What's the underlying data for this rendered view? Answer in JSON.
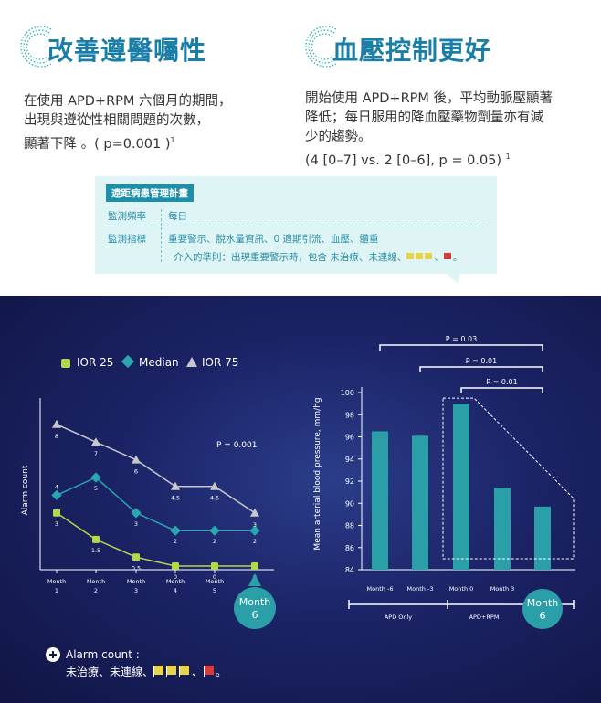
{
  "header": {
    "left_title": "改善遵醫囑性",
    "right_title": "血壓控制更好",
    "left_text": [
      "在使用 APD+RPM 六個月的期間，",
      "出現與遵從性相關問題的次數，",
      "顯著下降 。( p=0.001 )"
    ],
    "left_sup": "1",
    "right_text": [
      "開始使用 APD+RPM 後，平均動脈壓顯著",
      "降低；每日服用的降血壓藥物劑量亦有減",
      "少的趨勢。",
      "(4 [0–7] vs. 2 [0–6], p = 0.05)"
    ],
    "right_sup": "1"
  },
  "panel": {
    "tag": "遠距病患管理計畫",
    "freq_label": "監測頻率",
    "freq_value": "每日",
    "metric_label": "監測指標",
    "metric_value": "重要警示、脫水量資訊、0 適期引流、血壓、體重",
    "criteria": "介入的準則：出現重要警示時，包含 未治療、未連線、",
    "criteria_end": "、",
    "criteria_tail": "。"
  },
  "colors": {
    "teal": "#2a9fa8",
    "iqr25": "#b5d84a",
    "median": "#2aa6b0",
    "iqr75": "#c8c8cc",
    "yellow_flag": "#e8d44a",
    "red_flag": "#d83a3a"
  },
  "chart_data": [
    {
      "type": "line",
      "x": [
        "Month 1",
        "Month 2",
        "Month 3",
        "Month 4",
        "Month 5",
        "Month 6"
      ],
      "x_ticks": [
        [
          "Month",
          "1"
        ],
        [
          "Month",
          "2"
        ],
        [
          "Month",
          "3"
        ],
        [
          "Month",
          "4"
        ],
        [
          "Month",
          "5"
        ]
      ],
      "x_highlight": [
        "Month",
        "6"
      ],
      "ylabel": "Alarm count",
      "annotation": "P = 0.001",
      "ylim": [
        0,
        10
      ],
      "series": [
        {
          "name": "IQR 25",
          "values": [
            3,
            1.5,
            0.5,
            0,
            0,
            0
          ],
          "labels": [
            "3",
            "1.5",
            "0.5",
            "0",
            "0",
            "0"
          ]
        },
        {
          "name": "Median",
          "values": [
            4,
            5,
            3,
            2,
            2,
            2
          ],
          "labels": [
            "4",
            "5",
            "3",
            "2",
            "2",
            "2"
          ]
        },
        {
          "name": "IOR 75",
          "values": [
            8,
            7,
            6,
            4.5,
            4.5,
            3
          ],
          "labels": [
            "8",
            "7",
            "6",
            "4.5",
            "4.5",
            "3"
          ]
        }
      ],
      "legend": [
        "IOR 25",
        "Median",
        "IOR 75"
      ]
    },
    {
      "type": "bar",
      "categories": [
        "Month -6",
        "Month -3",
        "Month  0",
        "Month  3",
        "Month 6"
      ],
      "values": [
        96.5,
        96.1,
        99,
        91.4,
        89.7
      ],
      "ylabel": "Mean arterial blood pressure, mm/hg",
      "ylim": [
        84,
        100
      ],
      "yticks": [
        84,
        86,
        88,
        90,
        92,
        94,
        96,
        98,
        100
      ],
      "x_highlight": [
        "Month",
        "6"
      ],
      "brackets": [
        "P = 0.03",
        "P = 0.01",
        "P = 0.01"
      ],
      "groups": [
        "APD Only",
        "APD+RPM"
      ]
    }
  ],
  "footer": {
    "title": "Alarm count :",
    "line": "未治療、未連線、",
    "line_end": "、",
    "line_tail": "。"
  }
}
